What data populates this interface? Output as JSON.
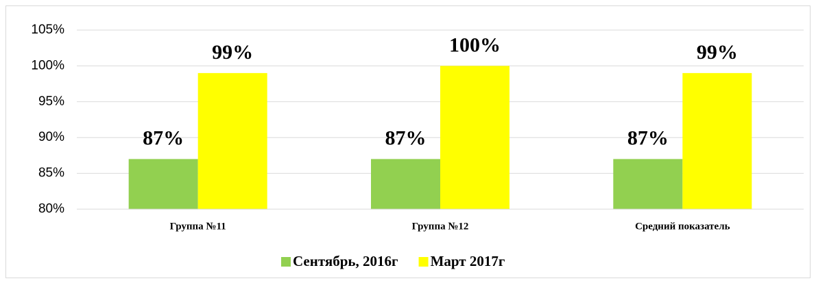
{
  "chart_data": {
    "type": "bar",
    "categories": [
      "Группа №11",
      "Группа №12",
      "Средний показатель"
    ],
    "series": [
      {
        "name": "Сентябрь, 2016г",
        "color": "#92d050",
        "values": [
          87,
          87,
          87
        ],
        "value_labels": [
          "87%",
          "87%",
          "87%"
        ]
      },
      {
        "name": "Март 2017г",
        "color": "#ffff00",
        "values": [
          99,
          100,
          99
        ],
        "value_labels": [
          "99%",
          "100%",
          "99%"
        ]
      }
    ],
    "ylim": [
      80,
      105
    ],
    "yticks": [
      {
        "value": 80,
        "label": "80%"
      },
      {
        "value": 85,
        "label": "85%"
      },
      {
        "value": 90,
        "label": "90%"
      },
      {
        "value": 95,
        "label": "95%"
      },
      {
        "value": 100,
        "label": "100%"
      },
      {
        "value": 105,
        "label": "105%"
      }
    ],
    "grid": true,
    "legend": "bottom"
  }
}
